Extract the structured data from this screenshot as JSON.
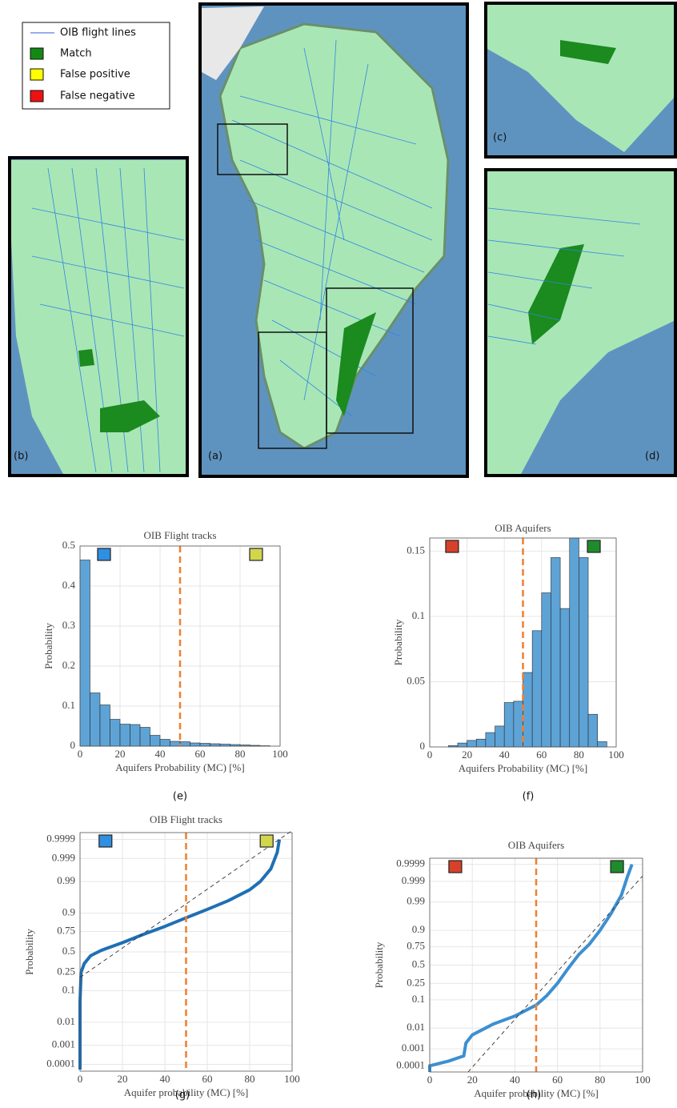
{
  "map_legend": [
    "OIB flight lines",
    "Match",
    "False positive",
    "False negative"
  ],
  "map_panels": [
    "(a)",
    "(b)",
    "(c)",
    "(d)"
  ],
  "chart_data": [
    {
      "type": "histogram",
      "title": "OIB Flight tracks",
      "x_label": "Aquifers Probability (MC) [%]",
      "y_label": "Probability",
      "panel_label": "(e)",
      "bins": [
        0,
        5,
        10,
        15,
        20,
        25,
        30,
        35,
        40,
        45,
        50,
        55,
        60,
        65,
        70,
        75,
        80,
        85,
        90,
        95,
        100
      ],
      "values": [
        0.465,
        0.133,
        0.103,
        0.067,
        0.055,
        0.054,
        0.047,
        0.027,
        0.017,
        0.012,
        0.011,
        0.008,
        0.007,
        0.006,
        0.005,
        0.004,
        0.003,
        0.002,
        0.001,
        0
      ],
      "color": "#5ea3d6",
      "xlim": [
        0,
        100
      ],
      "xticks": [
        0,
        20,
        40,
        60,
        80,
        100
      ],
      "ylim": [
        0,
        0.5
      ],
      "yticks": [
        0,
        0.1,
        0.2,
        0.3,
        0.4,
        0.5
      ],
      "threshold": 50,
      "threshold_color": "#f07f2e",
      "corner_marks": [
        "#2f8fe0",
        "#d2d64c"
      ],
      "grid": true
    },
    {
      "type": "histogram",
      "title": "OIB Aquifers",
      "x_label": "Aquifers Probability (MC) [%]",
      "y_label": "Probability",
      "panel_label": "(f)",
      "bins": [
        10,
        15,
        20,
        25,
        30,
        35,
        40,
        45,
        50,
        55,
        60,
        65,
        70,
        75,
        80,
        85,
        90,
        95
      ],
      "values": [
        0.001,
        0.003,
        0.005,
        0.006,
        0.011,
        0.016,
        0.034,
        0.035,
        0.057,
        0.089,
        0.118,
        0.145,
        0.106,
        0.16,
        0.145,
        0.025,
        0.004
      ],
      "color": "#5ea3d6",
      "xlim": [
        0,
        100
      ],
      "xticks": [
        0,
        20,
        40,
        60,
        80,
        100
      ],
      "ylim": [
        0,
        0.16
      ],
      "yticks": [
        0,
        0.05,
        0.1,
        0.15
      ],
      "threshold": 50,
      "threshold_color": "#f07f2e",
      "corner_marks": [
        "#d8402a",
        "#1e8c2c"
      ],
      "grid": true
    },
    {
      "type": "probplot",
      "title": "OIB Flight tracks",
      "x_label": "Aquifer probability (MC) [%]",
      "y_label": "Probability",
      "panel_label": "(g)",
      "yscale": "normal",
      "xlim": [
        0,
        100
      ],
      "xticks": [
        0,
        20,
        40,
        60,
        80,
        100
      ],
      "ylim": [
        4e-05,
        0.99996
      ],
      "yticks": [
        0.0001,
        0.001,
        0.01,
        0.1,
        0.25,
        0.5,
        0.75,
        0.9,
        0.99,
        0.999,
        0.9999
      ],
      "series": [
        {
          "color": "#1f6fb5",
          "x": [
            0,
            0,
            0,
            0.5,
            2,
            5,
            10,
            20,
            30,
            40,
            50,
            60,
            70,
            80,
            85,
            90,
            93,
            94
          ],
          "values": [
            5e-05,
            0.001,
            0.05,
            0.25,
            0.35,
            0.45,
            0.52,
            0.62,
            0.72,
            0.8,
            0.87,
            0.92,
            0.955,
            0.98,
            0.99,
            0.997,
            0.9995,
            0.9999
          ]
        },
        {
          "color": "#333333",
          "dash": true,
          "x": [
            0,
            100
          ],
          "values": [
            0.2,
            0.99997
          ]
        }
      ],
      "threshold": 50,
      "threshold_color": "#f07f2e",
      "corner_marks": [
        "#2f8fe0",
        "#d2d64c"
      ],
      "grid": true
    },
    {
      "type": "probplot",
      "title": "OIB Aquifers",
      "x_label": "Aquifer probability (MC) [%]",
      "y_label": "Probability",
      "panel_label": "(h)",
      "yscale": "normal",
      "xlim": [
        0,
        100
      ],
      "xticks": [
        0,
        20,
        40,
        60,
        80,
        100
      ],
      "ylim": [
        4e-05,
        0.99996
      ],
      "yticks": [
        0.0001,
        0.001,
        0.01,
        0.1,
        0.25,
        0.5,
        0.75,
        0.9,
        0.99,
        0.999,
        0.9999
      ],
      "series": [
        {
          "color": "#3d8fd0",
          "x": [
            0,
            0,
            9,
            13,
            16,
            17,
            20,
            30,
            40,
            50,
            55,
            60,
            65,
            70,
            75,
            80,
            85,
            90,
            93,
            95
          ],
          "values": [
            4e-05,
            0.0001,
            0.0002,
            0.0003,
            0.0004,
            0.002,
            0.005,
            0.015,
            0.03,
            0.07,
            0.13,
            0.25,
            0.45,
            0.65,
            0.78,
            0.9,
            0.97,
            0.995,
            0.9995,
            0.9999
          ]
        },
        {
          "color": "#333333",
          "dash": true,
          "x": [
            18,
            100
          ],
          "values": [
            4e-05,
            0.9995
          ]
        }
      ],
      "threshold": 50,
      "threshold_color": "#f07f2e",
      "corner_marks": [
        "#d8402a",
        "#1e8c2c"
      ],
      "grid": true
    }
  ]
}
